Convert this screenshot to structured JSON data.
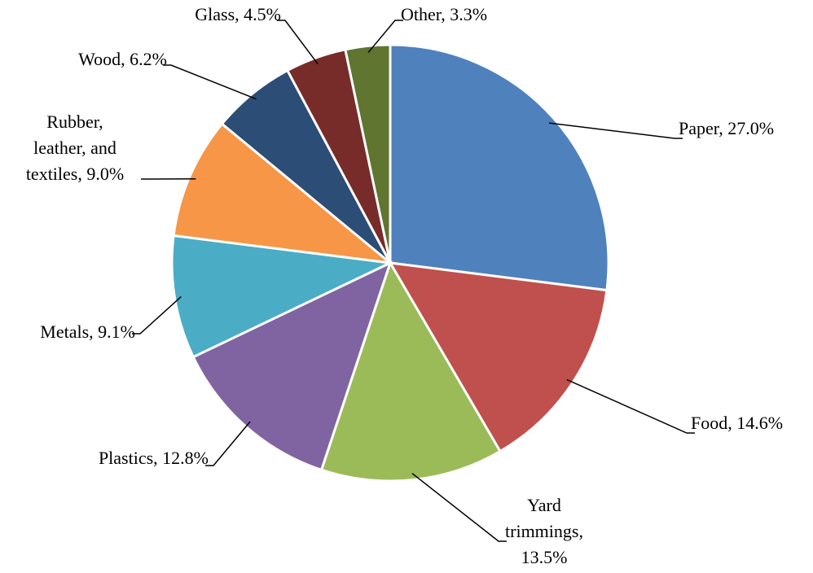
{
  "chart_data": {
    "type": "pie",
    "values": [
      27.0,
      14.6,
      13.5,
      12.8,
      9.1,
      9.0,
      6.2,
      4.5,
      3.3
    ],
    "value_labels": [
      "Paper, 27.0%",
      "Food, 14.6%",
      "Yard\ntrimmings,\n13.5%",
      "Plastics, 12.8%",
      "Metals, 9.1%",
      "Rubber,\nleather, and\ntextiles, 9.0%",
      "Wood, 6.2%",
      "Glass, 4.5%",
      "Other, 3.3%"
    ],
    "colors": [
      "#4f81bd",
      "#c0504d",
      "#9bbb59",
      "#8064a2",
      "#4bacc6",
      "#f79646",
      "#2c4d75",
      "#772c2a",
      "#5f7530"
    ]
  }
}
